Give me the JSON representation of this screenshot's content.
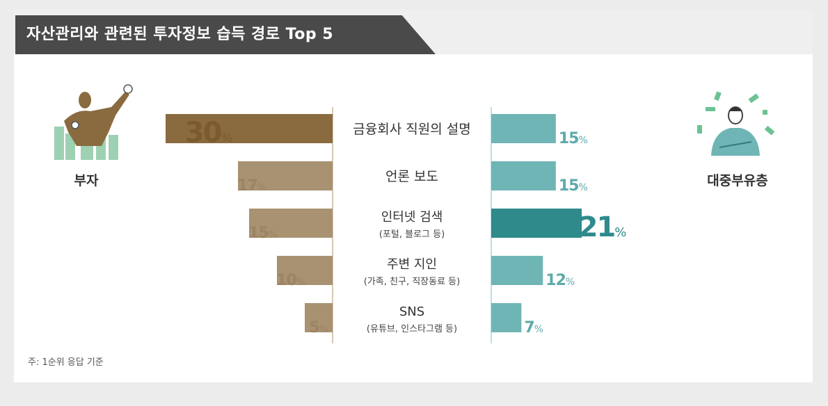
{
  "title": "자산관리와 관련된 투자정보 습득 경로 Top 5",
  "footnote": "주: 1순위 응답 기준",
  "colors": {
    "wealthy_bar": "#a89272",
    "wealthy_highlight": "#8a6b40",
    "mass_bar": "#6fb5b6",
    "mass_highlight": "#2f8a8c",
    "banner": "#4a4a4a"
  },
  "chart_data": {
    "type": "bar",
    "categories": [
      [
        "금융회사 직원의 설명"
      ],
      [
        "언론 보도"
      ],
      [
        "인터넷 검색",
        "(포털, 블로그 등)"
      ],
      [
        "주변 지인",
        "(가족, 친구, 직장동료 등)"
      ],
      [
        "SNS",
        "(유튜브, 인스타그램 등)"
      ]
    ],
    "unit": "%",
    "series": [
      {
        "name": "부자",
        "values": [
          30,
          17,
          15,
          10,
          5
        ],
        "icon": "wealthy-person-icon"
      },
      {
        "name": "대중부유층",
        "values": [
          15,
          15,
          21,
          12,
          7
        ],
        "icon": "mass-affluent-person-icon"
      }
    ]
  }
}
